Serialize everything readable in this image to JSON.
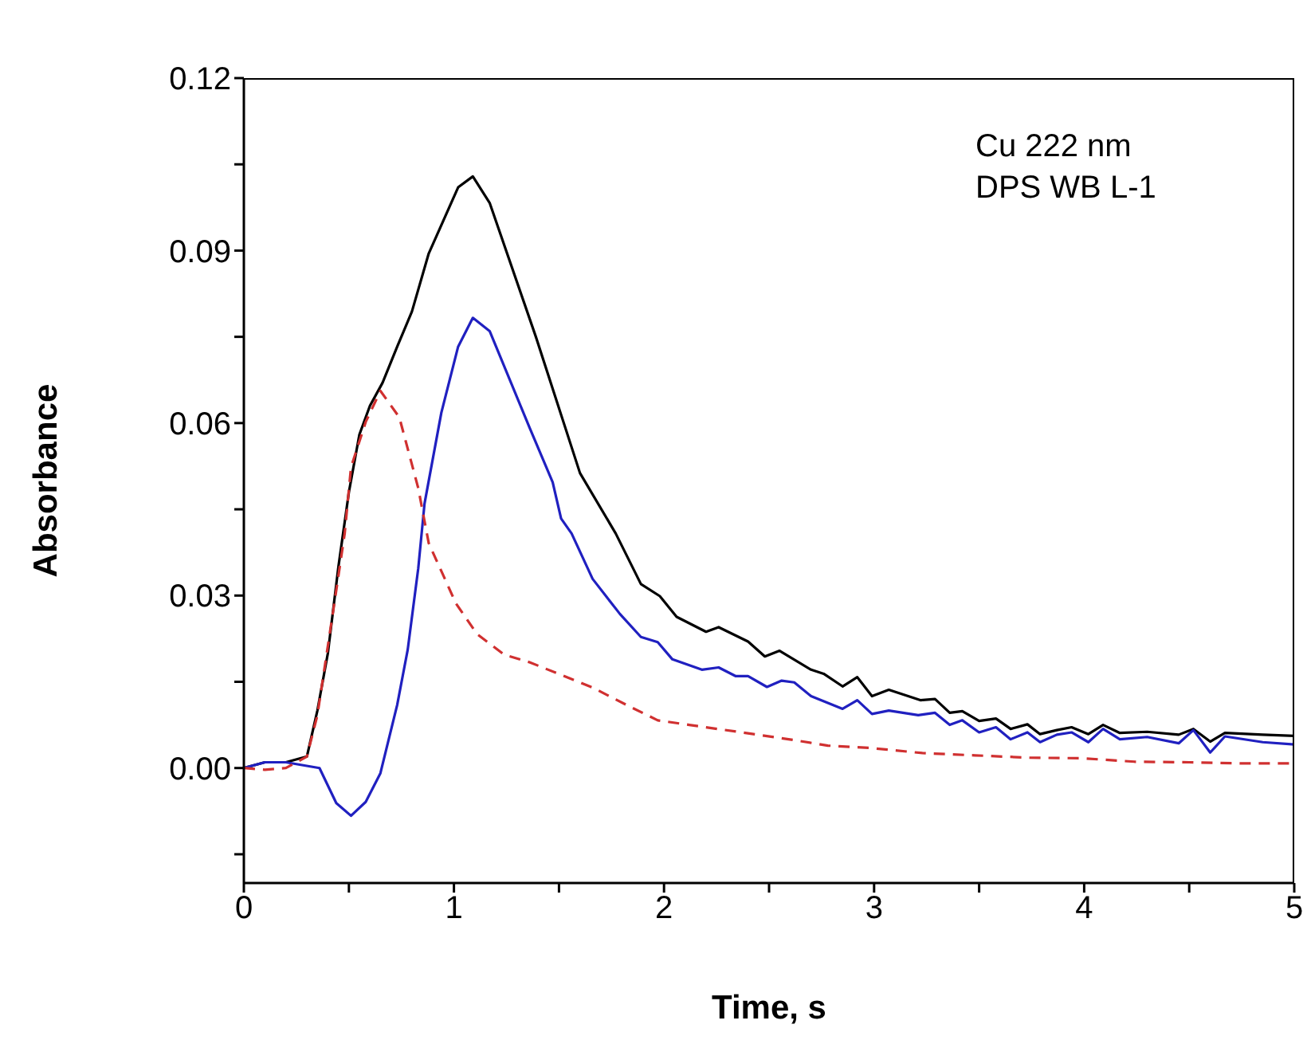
{
  "chart_data": {
    "type": "line",
    "xlabel": "Time, s",
    "ylabel": "Absorbance",
    "annotations": [
      "Cu 222 nm",
      "DPS WB L-1"
    ],
    "marker": "none",
    "xlim": [
      0,
      5
    ],
    "ylim": [
      -0.02,
      0.12
    ],
    "xticks": [
      0,
      {
        "value": 0.5,
        "label": null
      },
      1,
      {
        "value": 1.5,
        "label": null
      },
      2,
      {
        "value": 2.5,
        "label": null
      },
      3,
      {
        "value": 3.5,
        "label": null
      },
      4,
      {
        "value": 4.5,
        "label": null
      },
      5
    ],
    "yticks": [
      {
        "value": -0.015,
        "label": null
      },
      {
        "value": 0,
        "label": "0.00"
      },
      {
        "value": 0.015,
        "label": null
      },
      0.03,
      {
        "value": 0.045,
        "label": null
      },
      0.06,
      {
        "value": 0.075,
        "label": null
      },
      0.09,
      {
        "value": 0.105,
        "label": null
      },
      0.12
    ],
    "series": [
      {
        "color": "#000000",
        "line_style": "solid",
        "x": [
          0,
          0.1,
          0.2,
          0.3,
          0.35,
          0.4,
          0.45,
          0.5,
          0.55,
          0.6,
          0.66,
          0.73,
          0.8,
          0.88,
          1.02,
          1.09,
          1.17,
          1.39,
          1.6,
          1.77,
          1.89,
          1.98,
          2.06,
          2.2,
          2.26,
          2.4,
          2.48,
          2.55,
          2.7,
          2.76,
          2.85,
          2.92,
          2.99,
          3.07,
          3.22,
          3.29,
          3.36,
          3.42,
          3.5,
          3.58,
          3.65,
          3.73,
          3.79,
          3.87,
          3.94,
          4.02,
          4.09,
          4.17,
          4.3,
          4.45,
          4.52,
          4.6,
          4.67,
          4.85,
          5.0
        ],
        "values": [
          0,
          0.001,
          0.001,
          0.002,
          0.01,
          0.02,
          0.035,
          0.048,
          0.058,
          0.063,
          0.067,
          0.0733,
          0.0794,
          0.0895,
          0.101,
          0.1029,
          0.0983,
          0.075,
          0.0513,
          0.0408,
          0.032,
          0.0299,
          0.0263,
          0.0237,
          0.0245,
          0.022,
          0.0194,
          0.0204,
          0.0171,
          0.0164,
          0.0142,
          0.0158,
          0.0125,
          0.0136,
          0.0118,
          0.012,
          0.0096,
          0.0099,
          0.0082,
          0.0086,
          0.0068,
          0.0076,
          0.0059,
          0.0066,
          0.0071,
          0.0059,
          0.0075,
          0.0061,
          0.0063,
          0.0058,
          0.0068,
          0.0046,
          0.0061,
          0.0058,
          0.0056
        ]
      },
      {
        "color": "#2020c0",
        "line_style": "solid",
        "x": [
          0,
          0.1,
          0.2,
          0.36,
          0.44,
          0.51,
          0.58,
          0.65,
          0.73,
          0.78,
          0.83,
          0.86,
          0.94,
          1.02,
          1.09,
          1.17,
          1.36,
          1.47,
          1.51,
          1.56,
          1.66,
          1.79,
          1.89,
          1.97,
          2.04,
          2.18,
          2.26,
          2.34,
          2.4,
          2.49,
          2.56,
          2.62,
          2.7,
          2.85,
          2.92,
          2.99,
          3.07,
          3.21,
          3.29,
          3.36,
          3.42,
          3.5,
          3.58,
          3.65,
          3.73,
          3.79,
          3.87,
          3.94,
          4.02,
          4.09,
          4.17,
          4.3,
          4.45,
          4.52,
          4.6,
          4.67,
          4.85,
          5.0
        ],
        "values": [
          0,
          0.001,
          0.001,
          0,
          -0.0061,
          -0.0083,
          -0.0059,
          -0.0009,
          0.011,
          0.0206,
          0.0347,
          0.046,
          0.0618,
          0.0733,
          0.0783,
          0.076,
          0.0592,
          0.0497,
          0.0434,
          0.0408,
          0.0329,
          0.0268,
          0.0228,
          0.0219,
          0.0189,
          0.0171,
          0.0175,
          0.016,
          0.016,
          0.0141,
          0.0152,
          0.0149,
          0.0125,
          0.0103,
          0.0118,
          0.0094,
          0.01,
          0.0092,
          0.0096,
          0.0075,
          0.0083,
          0.0062,
          0.0071,
          0.005,
          0.0062,
          0.0045,
          0.0058,
          0.0062,
          0.0045,
          0.0068,
          0.005,
          0.0054,
          0.0043,
          0.0066,
          0.0027,
          0.0055,
          0.0045,
          0.0041
        ]
      },
      {
        "color": "#d03030",
        "line_style": "dashed",
        "x": [
          0,
          0.1,
          0.2,
          0.3,
          0.35,
          0.43,
          0.48,
          0.51,
          0.58,
          0.65,
          0.74,
          0.83,
          0.88,
          1.01,
          1.11,
          1.24,
          1.36,
          1.51,
          1.66,
          1.82,
          1.97,
          2.12,
          2.37,
          2.63,
          2.78,
          2.98,
          3.23,
          3.48,
          3.74,
          3.99,
          4.24,
          4.5,
          4.75,
          5.0
        ],
        "values": [
          0,
          -0.0003,
          0,
          0.002,
          0.0092,
          0.0285,
          0.0408,
          0.0523,
          0.0602,
          0.0656,
          0.061,
          0.0487,
          0.0391,
          0.0286,
          0.0233,
          0.0197,
          0.0184,
          0.0162,
          0.014,
          0.011,
          0.0083,
          0.0075,
          0.0062,
          0.0048,
          0.0039,
          0.0035,
          0.0026,
          0.0022,
          0.0018,
          0.0017,
          0.0011,
          0.001,
          0.0008,
          0.0008
        ]
      }
    ]
  }
}
